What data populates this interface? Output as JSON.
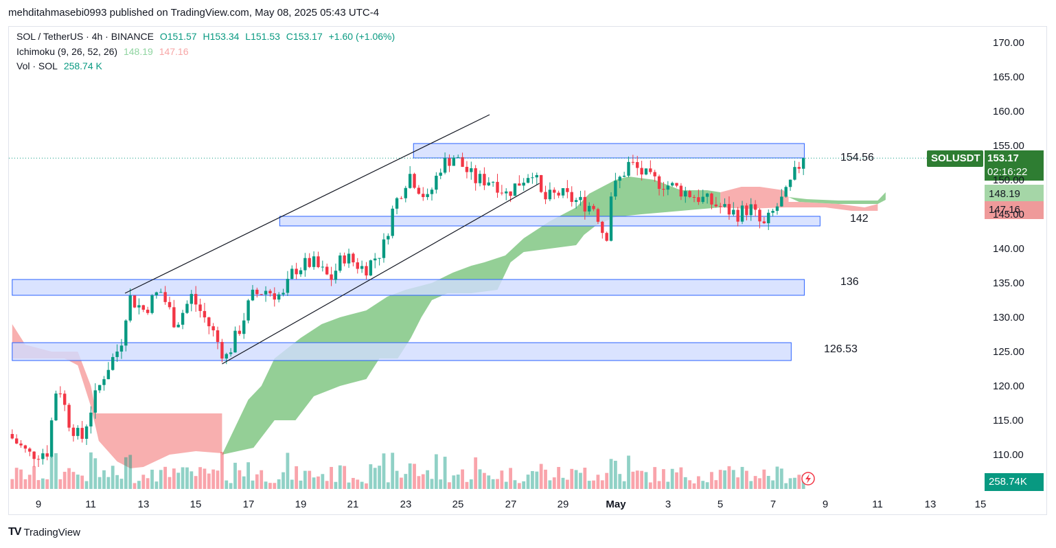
{
  "header": {
    "publisher": "mehditahmasebi0993 published on TradingView.com, May 08, 2025 05:43 UTC-4"
  },
  "legend": {
    "line1": {
      "symbol": "SOL / TetherUS · 4h · BINANCE",
      "o": "O151.57",
      "h": "H153.34",
      "l": "L151.53",
      "c": "C153.17",
      "chg": "+1.60 (+1.06%)"
    },
    "line2": {
      "name": "Ichimoku (9, 26, 52, 26)",
      "v1": "148.19",
      "v2": "147.16"
    },
    "line3": {
      "name": "Vol · SOL",
      "v1": "258.74 K"
    }
  },
  "price_badges": {
    "symbol": "SOLUSDT",
    "price": "153.17",
    "countdown": "02:16:22",
    "ichimoku_a": "148.19",
    "ichimoku_b": "147.16",
    "volume": "258.74K"
  },
  "zone_labels": [
    "154.56",
    "142",
    "136",
    "126.53"
  ],
  "brand": {
    "name": "TradingView"
  },
  "colors": {
    "up": "#089981",
    "down": "#f23645",
    "zone_fill": "#d1dcff",
    "zone_border": "#2962ff",
    "cloud_bull": "#81c784",
    "cloud_bear": "#f7a1a1",
    "badge_green": "#2e7d32"
  },
  "chart_data": {
    "type": "candlestick",
    "symbol": "SOL / TetherUS",
    "timeframe": "4h",
    "ylim": [
      106,
      172
    ],
    "x_ticks": [
      "9",
      "11",
      "13",
      "15",
      "17",
      "19",
      "21",
      "23",
      "25",
      "27",
      "29",
      "May",
      "3",
      "5",
      "7",
      "9",
      "11",
      "13",
      "15"
    ],
    "y_ticks": [
      "110.00",
      "115.00",
      "120.00",
      "125.00",
      "130.00",
      "135.00",
      "140.00",
      "145.00",
      "150.00",
      "155.00",
      "160.00",
      "165.00",
      "170.00"
    ],
    "zones": [
      {
        "label": "154.56",
        "low": 153.2,
        "high": 155.3,
        "from_day": 23.3,
        "to_day": 38.2
      },
      {
        "label": "142",
        "low": 143.3,
        "high": 144.7,
        "from_day": 18.2,
        "to_day": 38.8
      },
      {
        "label": "136",
        "low": 133.2,
        "high": 135.5,
        "from_day": 8.0,
        "to_day": 38.2
      },
      {
        "label": "126.53",
        "low": 123.7,
        "high": 126.3,
        "from_day": 8.0,
        "to_day": 37.7
      }
    ],
    "trendlines": [
      {
        "from": [
          12.3,
          133.5
        ],
        "to": [
          26.2,
          159.5
        ]
      },
      {
        "from": [
          16.0,
          123.2
        ],
        "to": [
          28.1,
          149.5
        ]
      }
    ],
    "price_anchors": [
      [
        8.0,
        113
      ],
      [
        8.8,
        110
      ],
      [
        9.5,
        110.5
      ],
      [
        9.9,
        121
      ],
      [
        10.3,
        115
      ],
      [
        10.8,
        112
      ],
      [
        11.1,
        116
      ],
      [
        11.7,
        122
      ],
      [
        12.3,
        126
      ],
      [
        12.6,
        133
      ],
      [
        13.2,
        131
      ],
      [
        13.8,
        134
      ],
      [
        14.4,
        129
      ],
      [
        15.0,
        133
      ],
      [
        15.8,
        128
      ],
      [
        16.3,
        124
      ],
      [
        16.8,
        128
      ],
      [
        17.3,
        133
      ],
      [
        17.8,
        134
      ],
      [
        18.5,
        133
      ],
      [
        18.9,
        137
      ],
      [
        19.6,
        138
      ],
      [
        20.3,
        135.5
      ],
      [
        20.8,
        139
      ],
      [
        21.6,
        137
      ],
      [
        22.3,
        140
      ],
      [
        22.7,
        146
      ],
      [
        23.3,
        151
      ],
      [
        24.0,
        147
      ],
      [
        24.5,
        152
      ],
      [
        25.0,
        153.5
      ],
      [
        25.8,
        150
      ],
      [
        26.5,
        150
      ],
      [
        27.0,
        148
      ],
      [
        27.6,
        150
      ],
      [
        28.0,
        151.5
      ],
      [
        28.4,
        147
      ],
      [
        29.0,
        148
      ],
      [
        29.6,
        147
      ],
      [
        30.4,
        146
      ],
      [
        30.8,
        141
      ],
      [
        31.0,
        148
      ],
      [
        31.7,
        152.5
      ],
      [
        32.5,
        150
      ],
      [
        33.0,
        149.5
      ],
      [
        34.0,
        148
      ],
      [
        34.6,
        147
      ],
      [
        35.2,
        146
      ],
      [
        35.8,
        145
      ],
      [
        36.3,
        146
      ],
      [
        36.8,
        143
      ],
      [
        37.3,
        146
      ],
      [
        37.7,
        148
      ],
      [
        37.9,
        150
      ],
      [
        38.3,
        153.2
      ]
    ],
    "volume_scale_K": 800,
    "last": {
      "open": 151.57,
      "high": 153.34,
      "low": 151.53,
      "close": 153.17,
      "change": 1.6,
      "change_pct": 1.06,
      "volume_K": 258.74
    },
    "ichimoku": {
      "params": [
        9,
        26,
        52,
        26
      ],
      "span_a": 148.19,
      "span_b": 147.16
    }
  }
}
